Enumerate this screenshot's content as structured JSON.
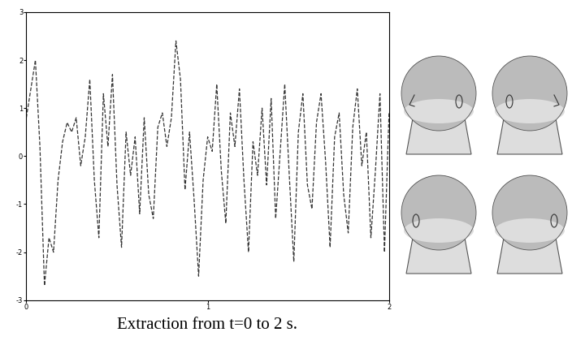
{
  "chart_data": {
    "type": "line",
    "caption": "Extraction from t=0 to 2 s.",
    "x": [
      0.0,
      0.025,
      0.05,
      0.075,
      0.1,
      0.125,
      0.15,
      0.175,
      0.2,
      0.225,
      0.25,
      0.275,
      0.3,
      0.325,
      0.35,
      0.375,
      0.4,
      0.425,
      0.45,
      0.475,
      0.5,
      0.525,
      0.55,
      0.575,
      0.6,
      0.625,
      0.65,
      0.675,
      0.7,
      0.725,
      0.75,
      0.775,
      0.8,
      0.825,
      0.85,
      0.875,
      0.9,
      0.925,
      0.95,
      0.975,
      1.0,
      1.025,
      1.05,
      1.075,
      1.1,
      1.125,
      1.15,
      1.175,
      1.2,
      1.225,
      1.25,
      1.275,
      1.3,
      1.325,
      1.35,
      1.375,
      1.4,
      1.425,
      1.45,
      1.475,
      1.5,
      1.525,
      1.55,
      1.575,
      1.6,
      1.625,
      1.65,
      1.675,
      1.7,
      1.725,
      1.75,
      1.775,
      1.8,
      1.825,
      1.85,
      1.875,
      1.9,
      1.925,
      1.95,
      1.975,
      2.0
    ],
    "values": [
      0.8,
      1.4,
      2.0,
      0.2,
      -2.7,
      -1.7,
      -2.0,
      -0.5,
      0.3,
      0.7,
      0.5,
      0.8,
      -0.2,
      0.4,
      1.6,
      -0.5,
      -1.7,
      1.3,
      0.2,
      1.7,
      -0.6,
      -1.9,
      0.5,
      -0.4,
      0.4,
      -1.2,
      0.8,
      -0.8,
      -1.3,
      0.6,
      0.9,
      0.2,
      0.8,
      2.4,
      1.6,
      -0.7,
      0.5,
      -0.9,
      -2.5,
      -0.5,
      0.4,
      0.1,
      1.5,
      -0.3,
      -1.4,
      0.9,
      0.2,
      1.4,
      -0.5,
      -2.0,
      0.3,
      -0.4,
      1.0,
      -0.6,
      1.2,
      -1.3,
      0.1,
      1.5,
      -0.4,
      -2.2,
      0.5,
      1.3,
      -0.6,
      -1.1,
      0.7,
      1.3,
      -0.1,
      -1.9,
      0.4,
      0.9,
      -0.8,
      -1.6,
      0.6,
      1.4,
      -0.2,
      0.5,
      -1.7,
      -0.3,
      1.3,
      -2.0,
      0.9
    ],
    "color": "#333333",
    "line_style": "dashed",
    "xlim": [
      0,
      2
    ],
    "xticks": [
      0,
      1,
      2
    ],
    "ylim": [
      -3,
      3
    ],
    "yticks": [
      -3,
      -2,
      -1,
      0,
      1,
      2,
      3
    ],
    "grid": false
  }
}
